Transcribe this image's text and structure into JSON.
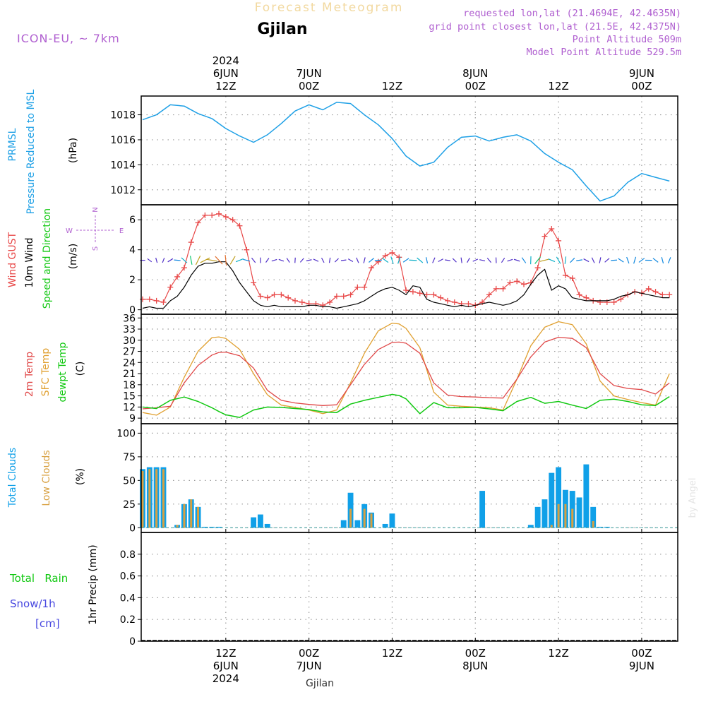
{
  "header": {
    "title_faint": "Forecast Meteogram",
    "location": "Gjilan",
    "model": "ICON-EU, ~ 7km",
    "info": [
      "requested lon,lat (21.4694E, 42.4635N)",
      "grid point closest lon,lat (21.5E, 42.4375N)",
      "Point Altitude 509m",
      "Model Point Altitude 529.5m"
    ],
    "footer_location": "Gjilan",
    "watermark": "by Angel"
  },
  "colors": {
    "pressure": "#1ea0e6",
    "gust": "#e84848",
    "wind": "#000000",
    "temp2m": "#e04848",
    "sfc": "#e0a030",
    "dewpt": "#10c810",
    "clouds_total": "#10a0e8",
    "clouds_low": "#d8a040",
    "rain": "#10c810",
    "snow": "#4848e0",
    "purple": "#b060d0"
  },
  "time_axis": {
    "top_ticks": [
      {
        "day": "6JUN",
        "hour": "12Z",
        "year": "2024",
        "hours": 12
      },
      {
        "day": "7JUN",
        "hour": "00Z",
        "year": "",
        "hours": 24
      },
      {
        "day": "",
        "hour": "12Z",
        "year": "",
        "hours": 36
      },
      {
        "day": "8JUN",
        "hour": "00Z",
        "year": "",
        "hours": 48
      },
      {
        "day": "",
        "hour": "12Z",
        "year": "",
        "hours": 60
      },
      {
        "day": "9JUN",
        "hour": "00Z",
        "year": "",
        "hours": 72
      }
    ],
    "bottom_ticks": [
      {
        "hour": "12Z",
        "day": "6JUN",
        "year": "2024",
        "hours": 12
      },
      {
        "hour": "00Z",
        "day": "7JUN",
        "year": "",
        "hours": 24
      },
      {
        "hour": "12Z",
        "day": "",
        "year": "",
        "hours": 36
      },
      {
        "hour": "00Z",
        "day": "8JUN",
        "year": "",
        "hours": 48
      },
      {
        "hour": "12Z",
        "day": "",
        "year": "",
        "hours": 60
      },
      {
        "hour": "00Z",
        "day": "9JUN",
        "year": "",
        "hours": 72
      }
    ]
  },
  "chart_data": [
    {
      "type": "line",
      "name": "pressure",
      "ylabel_lines": [
        "PRMSL",
        "Pressure Reduced to MSL"
      ],
      "unit": "(hPa)",
      "yticks": [
        1012,
        1014,
        1016,
        1018
      ],
      "ylim": [
        1010.8,
        1019.5
      ],
      "grid": true,
      "series": [
        {
          "name": "PRMSL",
          "x": [
            0,
            2,
            4,
            6,
            8,
            10,
            12,
            14,
            16,
            18,
            20,
            22,
            24,
            26,
            28,
            30,
            32,
            34,
            36,
            38,
            40,
            42,
            44,
            46,
            48,
            50,
            52,
            54,
            56,
            58,
            60,
            62,
            64,
            66,
            68,
            70,
            72,
            74,
            76
          ],
          "values": [
            1017.6,
            1018.0,
            1018.8,
            1018.7,
            1018.1,
            1017.7,
            1016.9,
            1016.3,
            1015.8,
            1016.4,
            1017.3,
            1018.3,
            1018.8,
            1018.4,
            1019.0,
            1018.9,
            1018.0,
            1017.2,
            1016.1,
            1014.7,
            1013.9,
            1014.2,
            1015.4,
            1016.2,
            1016.3,
            1015.9,
            1016.2,
            1016.4,
            1015.9,
            1014.9,
            1014.2,
            1013.6,
            1012.3,
            1011.1,
            1011.5,
            1012.6,
            1013.3,
            1013.0,
            1012.7
          ]
        }
      ]
    },
    {
      "type": "line",
      "name": "wind",
      "ylabel_lines": [
        "Wind GUST",
        "10m Wind",
        "Speed and Direction"
      ],
      "unit": "(m/s)",
      "compass": {
        "n": "N",
        "s": "S",
        "w": "W",
        "e": "E"
      },
      "yticks": [
        0,
        2,
        4,
        6
      ],
      "ylim": [
        -0.3,
        7.0
      ],
      "grid": true,
      "series": [
        {
          "name": "Wind GUST",
          "x": [
            0,
            1,
            2,
            3,
            4,
            5,
            6,
            7,
            8,
            9,
            10,
            11,
            12,
            13,
            14,
            15,
            16,
            17,
            18,
            19,
            20,
            21,
            22,
            23,
            24,
            25,
            26,
            27,
            28,
            29,
            30,
            31,
            32,
            33,
            34,
            35,
            36,
            37,
            38,
            39,
            40,
            41,
            42,
            43,
            44,
            45,
            46,
            47,
            48,
            49,
            50,
            51,
            52,
            53,
            54,
            55,
            56,
            57,
            58,
            59,
            60,
            61,
            62,
            63,
            64,
            65,
            66,
            67,
            68,
            69,
            70,
            71,
            72,
            73,
            74,
            75,
            76
          ],
          "values": [
            0.7,
            0.7,
            0.6,
            0.5,
            1.5,
            2.2,
            2.8,
            4.5,
            5.8,
            6.3,
            6.3,
            6.4,
            6.2,
            6.0,
            5.6,
            4.0,
            1.8,
            0.9,
            0.8,
            1.0,
            1.0,
            0.8,
            0.6,
            0.5,
            0.4,
            0.4,
            0.3,
            0.5,
            0.9,
            0.9,
            1.0,
            1.5,
            1.5,
            2.8,
            3.2,
            3.6,
            3.8,
            3.5,
            1.3,
            1.2,
            1.1,
            1.0,
            1.0,
            0.8,
            0.6,
            0.5,
            0.4,
            0.4,
            0.3,
            0.5,
            1.0,
            1.4,
            1.4,
            1.8,
            1.9,
            1.7,
            1.8,
            2.8,
            4.9,
            5.4,
            4.6,
            2.3,
            2.1,
            1.0,
            0.8,
            0.6,
            0.5,
            0.5,
            0.5,
            0.7,
            1.0,
            1.2,
            1.1,
            1.4,
            1.2,
            1.0,
            1.0
          ]
        },
        {
          "name": "10m Wind",
          "x": [
            0,
            1,
            2,
            3,
            4,
            5,
            6,
            7,
            8,
            9,
            10,
            11,
            12,
            13,
            14,
            15,
            16,
            17,
            18,
            19,
            20,
            21,
            22,
            23,
            24,
            25,
            26,
            27,
            28,
            29,
            30,
            31,
            32,
            33,
            34,
            35,
            36,
            37,
            38,
            39,
            40,
            41,
            42,
            43,
            44,
            45,
            46,
            47,
            48,
            49,
            50,
            51,
            52,
            53,
            54,
            55,
            56,
            57,
            58,
            59,
            60,
            61,
            62,
            63,
            64,
            65,
            66,
            67,
            68,
            69,
            70,
            71,
            72,
            73,
            74,
            75,
            76
          ],
          "values": [
            0.1,
            0.2,
            0.1,
            0.1,
            0.6,
            0.9,
            1.5,
            2.3,
            2.9,
            3.1,
            3.1,
            3.2,
            3.2,
            2.6,
            1.8,
            1.2,
            0.6,
            0.3,
            0.2,
            0.3,
            0.2,
            0.2,
            0.2,
            0.2,
            0.3,
            0.3,
            0.2,
            0.2,
            0.1,
            0.2,
            0.3,
            0.4,
            0.6,
            0.9,
            1.2,
            1.4,
            1.5,
            1.3,
            1.0,
            1.6,
            1.5,
            0.7,
            0.5,
            0.4,
            0.3,
            0.2,
            0.3,
            0.2,
            0.3,
            0.4,
            0.5,
            0.4,
            0.3,
            0.4,
            0.6,
            1.0,
            1.7,
            2.3,
            2.7,
            1.3,
            1.6,
            1.4,
            0.8,
            0.7,
            0.6,
            0.6,
            0.6,
            0.6,
            0.7,
            0.9,
            1.0,
            1.2,
            1.1,
            1.0,
            0.9,
            0.8,
            0.8
          ]
        }
      ]
    },
    {
      "type": "line",
      "name": "temperature",
      "ylabel_lines": [
        "2m Temp",
        "SFC Temp",
        "dewpt Temp"
      ],
      "unit": "(C)",
      "yticks": [
        9,
        12,
        15,
        18,
        21,
        24,
        27,
        30,
        33,
        36
      ],
      "ylim": [
        7.5,
        37.0
      ],
      "grid": true,
      "series": [
        {
          "name": "2m Temp",
          "x": [
            0,
            2,
            4,
            6,
            8,
            10,
            11,
            12,
            14,
            16,
            18,
            20,
            22,
            24,
            26,
            28,
            30,
            32,
            34,
            36,
            37,
            38,
            40,
            42,
            44,
            46,
            48,
            50,
            52,
            54,
            56,
            58,
            60,
            62,
            64,
            66,
            68,
            70,
            72,
            74,
            76
          ],
          "values": [
            11.5,
            11.8,
            12.2,
            18.5,
            23.2,
            26.0,
            26.7,
            26.8,
            25.8,
            22.5,
            16.5,
            13.8,
            13.1,
            12.7,
            12.4,
            12.6,
            18.0,
            23.5,
            27.5,
            29.4,
            29.5,
            29.2,
            26.5,
            18.5,
            15.2,
            14.8,
            14.7,
            14.5,
            14.4,
            19.5,
            25.5,
            29.5,
            30.8,
            30.5,
            28.0,
            21.0,
            17.8,
            17.0,
            16.7,
            15.5,
            18.5
          ]
        },
        {
          "name": "SFC Temp",
          "x": [
            0,
            2,
            4,
            6,
            8,
            10,
            11,
            12,
            14,
            16,
            18,
            20,
            22,
            24,
            26,
            28,
            30,
            32,
            34,
            36,
            37,
            38,
            40,
            42,
            44,
            46,
            48,
            50,
            52,
            54,
            56,
            58,
            60,
            62,
            64,
            66,
            68,
            70,
            72,
            74,
            76
          ],
          "values": [
            10.5,
            9.8,
            12.0,
            20.0,
            27.0,
            30.7,
            30.9,
            30.5,
            27.5,
            21.0,
            15.3,
            12.5,
            11.9,
            11.2,
            10.2,
            11.2,
            18.5,
            26.5,
            32.5,
            34.6,
            34.4,
            33.2,
            28.0,
            16.0,
            12.5,
            12.2,
            12.0,
            11.8,
            11.2,
            19.5,
            28.5,
            33.5,
            35.0,
            34.2,
            29.0,
            19.0,
            15.0,
            14.0,
            13.2,
            12.5,
            21.0
          ]
        },
        {
          "name": "dewpt Temp",
          "x": [
            0,
            2,
            4,
            6,
            8,
            10,
            11,
            12,
            14,
            16,
            18,
            20,
            22,
            24,
            26,
            28,
            30,
            32,
            34,
            36,
            37,
            38,
            40,
            42,
            44,
            46,
            48,
            50,
            52,
            54,
            56,
            58,
            60,
            62,
            64,
            66,
            68,
            70,
            72,
            74,
            76
          ],
          "values": [
            12.0,
            11.6,
            13.8,
            14.7,
            13.5,
            11.8,
            10.8,
            9.9,
            9.2,
            11.2,
            12.0,
            11.9,
            11.6,
            11.3,
            10.7,
            10.5,
            12.8,
            13.8,
            14.6,
            15.4,
            15.1,
            14.2,
            10.2,
            13.2,
            11.8,
            11.8,
            11.9,
            11.5,
            11.0,
            13.5,
            14.6,
            13.0,
            13.5,
            12.5,
            11.6,
            13.8,
            14.1,
            13.5,
            12.6,
            12.4,
            14.8
          ]
        }
      ]
    },
    {
      "type": "bar",
      "name": "clouds",
      "ylabel_lines": [
        "Total Clouds",
        "Low Clouds"
      ],
      "unit": "(%)",
      "yticks": [
        0,
        25,
        50,
        75,
        100
      ],
      "ylim": [
        -5,
        110
      ],
      "grid": true,
      "series": [
        {
          "name": "Total Clouds",
          "x": [
            0,
            1,
            2,
            3,
            5,
            6,
            7,
            8,
            9,
            10,
            11,
            16,
            17,
            18,
            29,
            30,
            31,
            32,
            33,
            35,
            36,
            49,
            56,
            57,
            58,
            59,
            60,
            61,
            62,
            63,
            64,
            65,
            66,
            67
          ],
          "values": [
            62,
            64,
            64,
            64,
            3,
            25,
            30,
            22,
            1,
            1,
            1,
            11,
            14,
            4,
            8,
            37,
            8,
            25,
            16,
            4,
            15,
            39,
            3,
            22,
            30,
            58,
            64,
            40,
            39,
            32,
            67,
            22,
            1,
            1
          ]
        },
        {
          "name": "Low Clouds",
          "x": [
            0,
            1,
            2,
            3,
            5,
            6,
            7,
            8,
            30,
            32,
            33,
            59,
            60,
            61,
            62,
            65
          ],
          "values": [
            60,
            62,
            62,
            62,
            3,
            25,
            30,
            22,
            20,
            20,
            15,
            3,
            25,
            25,
            20,
            7
          ]
        }
      ]
    },
    {
      "type": "bar",
      "name": "precip",
      "ylabel_lines": [
        "1hr Precip (mm)"
      ],
      "legend_lines": [
        "Total   Rain",
        "Snow/1h",
        "[cm]"
      ],
      "yticks": [
        0,
        0.2,
        0.4,
        0.6,
        0.8
      ],
      "ylim": [
        0,
        1.0
      ],
      "grid": true,
      "series": [
        {
          "name": "Total Rain",
          "x": [],
          "values": []
        }
      ]
    }
  ]
}
